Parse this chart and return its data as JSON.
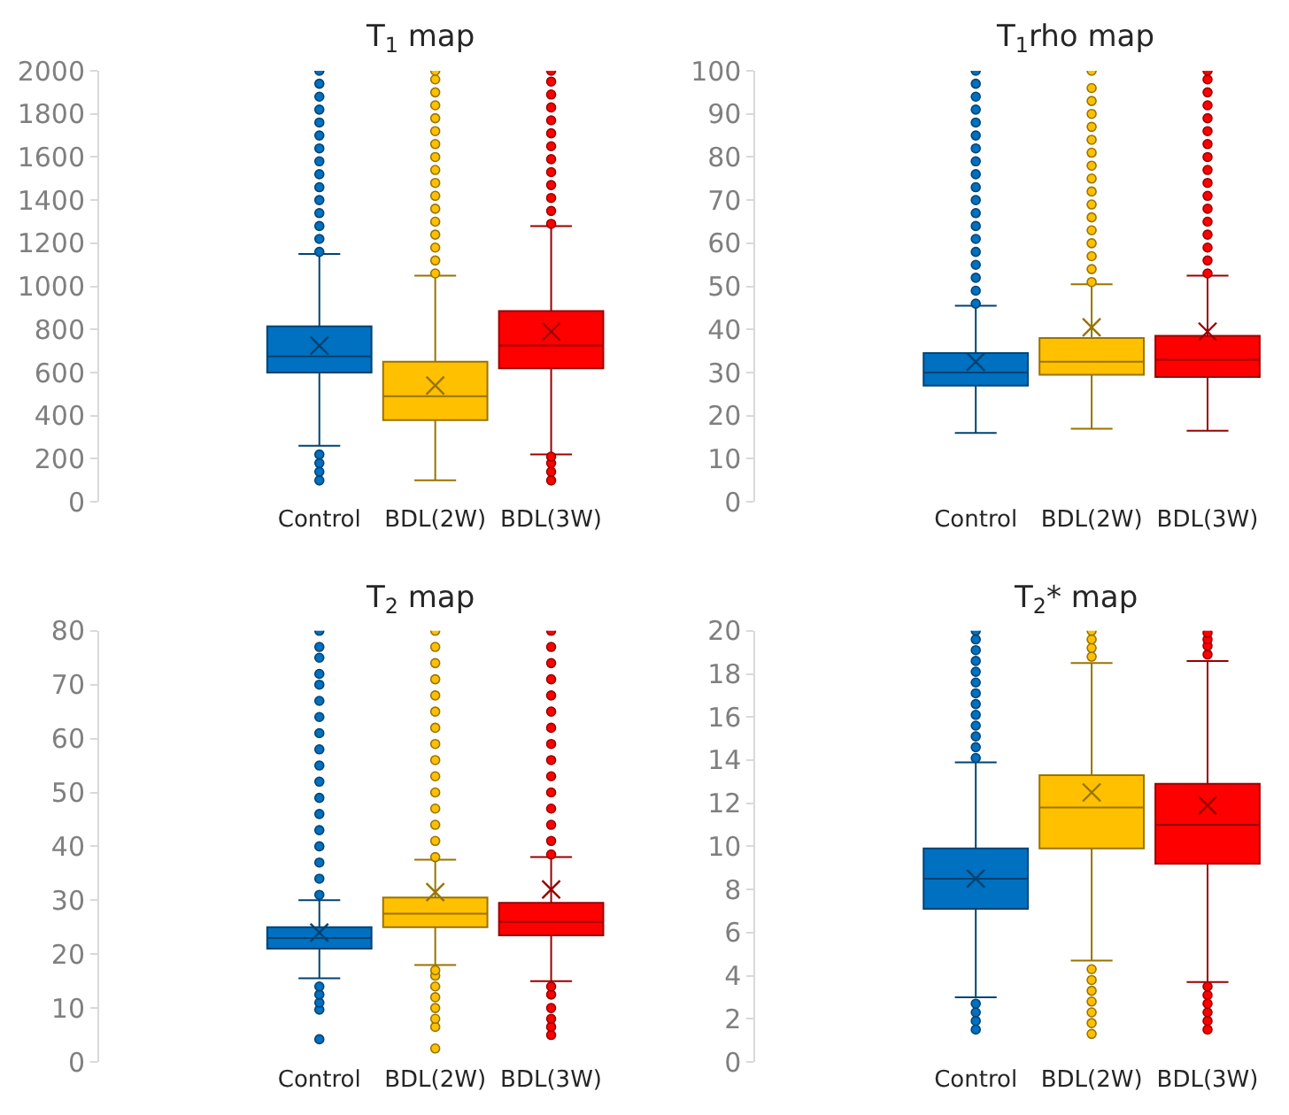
{
  "chart_data": [
    {
      "type": "box",
      "title": "T$_{1}$ map",
      "categories": [
        "Control",
        "BDL(2W)",
        "BDL(3W)"
      ],
      "colors": [
        "#0070c0",
        "#ffc000",
        "#ff0000"
      ],
      "ylim": [
        0,
        2000
      ],
      "yticks": [
        0,
        200,
        400,
        600,
        800,
        1000,
        1200,
        1400,
        1600,
        1800,
        2000
      ],
      "grid": false,
      "boxes": [
        {
          "low": 260,
          "q1": 600,
          "median": 675,
          "q3": 815,
          "high": 1150,
          "mean": 725,
          "outliers": [
            100,
            140,
            180,
            220,
            1160,
            1220,
            1280,
            1340,
            1400,
            1460,
            1520,
            1580,
            1640,
            1700,
            1760,
            1820,
            1880,
            1940,
            2000
          ]
        },
        {
          "low": 100,
          "q1": 380,
          "median": 490,
          "q3": 650,
          "high": 1050,
          "mean": 540,
          "outliers": [
            1060,
            1120,
            1180,
            1240,
            1300,
            1360,
            1420,
            1480,
            1540,
            1600,
            1660,
            1720,
            1780,
            1840,
            1900,
            1960,
            2000
          ]
        },
        {
          "low": 220,
          "q1": 620,
          "median": 725,
          "q3": 885,
          "high": 1280,
          "mean": 790,
          "outliers": [
            100,
            140,
            180,
            210,
            1290,
            1350,
            1410,
            1470,
            1530,
            1590,
            1650,
            1710,
            1770,
            1830,
            1890,
            1950,
            2000
          ]
        }
      ]
    },
    {
      "type": "box",
      "title": "T$_{1}$rho map",
      "categories": [
        "Control",
        "BDL(2W)",
        "BDL(3W)"
      ],
      "colors": [
        "#0070c0",
        "#ffc000",
        "#ff0000"
      ],
      "ylim": [
        0,
        100
      ],
      "yticks": [
        0,
        10,
        20,
        30,
        40,
        50,
        60,
        70,
        80,
        90,
        100
      ],
      "grid": false,
      "boxes": [
        {
          "low": 16,
          "q1": 27,
          "median": 30,
          "q3": 34.5,
          "high": 45.5,
          "mean": 32.5,
          "outliers": [
            46,
            49,
            52,
            55,
            58,
            61,
            64,
            67,
            70,
            73,
            76,
            79,
            82,
            85,
            88,
            91,
            94,
            97,
            100
          ]
        },
        {
          "low": 17,
          "q1": 29.5,
          "median": 32.5,
          "q3": 38,
          "high": 50.5,
          "mean": 40.5,
          "outliers": [
            51,
            54,
            57,
            60,
            63,
            66,
            69,
            72,
            75,
            78,
            81,
            84,
            87,
            90,
            93,
            96,
            100
          ]
        },
        {
          "low": 16.5,
          "q1": 29,
          "median": 33,
          "q3": 38.5,
          "high": 52.5,
          "mean": 39.5,
          "outliers": [
            53,
            56,
            59,
            62,
            65,
            68,
            71,
            74,
            77,
            80,
            83,
            86,
            89,
            92,
            95,
            98,
            100
          ]
        }
      ]
    },
    {
      "type": "box",
      "title": "T$_{2}$ map",
      "categories": [
        "Control",
        "BDL(2W)",
        "BDL(3W)"
      ],
      "colors": [
        "#0070c0",
        "#ffc000",
        "#ff0000"
      ],
      "ylim": [
        0,
        80
      ],
      "yticks": [
        0,
        10,
        20,
        30,
        40,
        50,
        60,
        70,
        80
      ],
      "grid": false,
      "boxes": [
        {
          "low": 15.5,
          "q1": 21,
          "median": 23,
          "q3": 25,
          "high": 30,
          "mean": 24,
          "outliers": [
            4.2,
            9.7,
            11,
            12.5,
            14,
            31,
            34,
            37,
            40,
            43,
            46,
            49,
            52,
            55,
            58,
            61,
            64,
            67,
            70,
            72,
            75,
            77,
            80
          ]
        },
        {
          "low": 18,
          "q1": 25,
          "median": 27.5,
          "q3": 30.5,
          "high": 37.5,
          "mean": 31.5,
          "outliers": [
            2.5,
            6.5,
            8,
            10,
            12,
            14,
            16,
            17,
            38,
            41,
            44,
            47,
            50,
            53,
            56,
            59,
            62,
            65,
            68,
            71,
            74,
            77,
            80
          ]
        },
        {
          "low": 15,
          "q1": 23.5,
          "median": 26,
          "q3": 29.5,
          "high": 38,
          "mean": 32,
          "outliers": [
            5,
            6.5,
            8,
            10,
            12.5,
            14,
            38.5,
            41,
            44,
            47,
            50,
            53,
            56,
            59,
            62,
            65,
            68,
            71,
            74,
            77,
            80
          ]
        }
      ]
    },
    {
      "type": "box",
      "title": "T$_{2}$* map",
      "categories": [
        "Control",
        "BDL(2W)",
        "BDL(3W)"
      ],
      "colors": [
        "#0070c0",
        "#ffc000",
        "#ff0000"
      ],
      "ylim": [
        0,
        20
      ],
      "yticks": [
        0,
        2,
        4,
        6,
        8,
        10,
        12,
        14,
        16,
        18,
        20
      ],
      "grid": false,
      "boxes": [
        {
          "low": 3,
          "q1": 7.1,
          "median": 8.5,
          "q3": 9.9,
          "high": 13.9,
          "mean": 8.5,
          "outliers": [
            1.5,
            1.9,
            2.3,
            2.7,
            14.1,
            14.6,
            15.1,
            15.6,
            16.1,
            16.6,
            17.1,
            17.6,
            18.1,
            18.6,
            19.1,
            19.6,
            20
          ]
        },
        {
          "low": 4.7,
          "q1": 9.9,
          "median": 11.8,
          "q3": 13.3,
          "high": 18.5,
          "mean": 12.5,
          "outliers": [
            1.3,
            1.8,
            2.3,
            2.8,
            3.3,
            3.8,
            4.3,
            18.8,
            19.2,
            19.6,
            20
          ]
        },
        {
          "low": 3.7,
          "q1": 9.2,
          "median": 11,
          "q3": 12.9,
          "high": 18.6,
          "mean": 11.9,
          "outliers": [
            1.5,
            1.9,
            2.3,
            2.7,
            3.1,
            3.5,
            18.9,
            19.3,
            19.6,
            19.9
          ]
        }
      ]
    }
  ]
}
